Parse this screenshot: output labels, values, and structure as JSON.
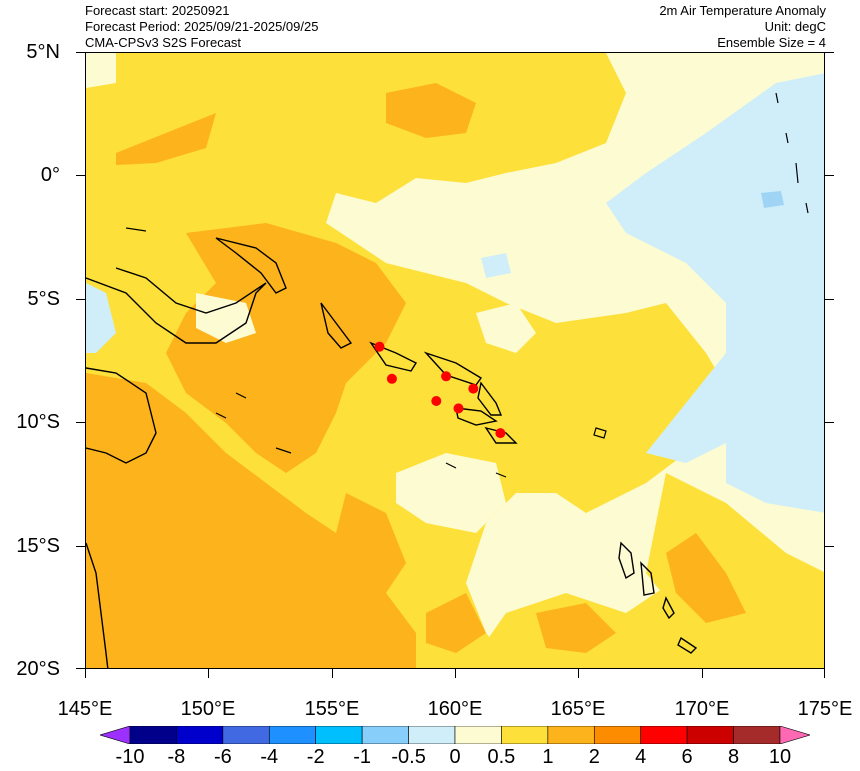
{
  "header": {
    "forecast_start": "Forecast start: 20250921",
    "forecast_period": "Forecast Period: 2025/09/21-2025/09/25",
    "model": "CMA-CPSv3 S2S Forecast",
    "variable": "2m Air Temperature Anomaly",
    "unit": "Unit: degC",
    "ensemble": "Ensemble Size = 4"
  },
  "map": {
    "lon_range": [
      145,
      175
    ],
    "lat_range": [
      -20,
      5
    ],
    "lat_labels": [
      "5°N",
      "0°",
      "5°S",
      "10°S",
      "15°S",
      "20°S"
    ],
    "lon_labels": [
      "145°E",
      "150°E",
      "155°E",
      "160°E",
      "165°E",
      "170°E",
      "175°E"
    ],
    "markers": [
      {
        "lon": 156.9,
        "lat": -6.9
      },
      {
        "lon": 157.4,
        "lat": -8.2
      },
      {
        "lon": 159.6,
        "lat": -8.1
      },
      {
        "lon": 159.2,
        "lat": -9.1
      },
      {
        "lon": 160.1,
        "lat": -9.4
      },
      {
        "lon": 160.7,
        "lat": -8.6
      },
      {
        "lon": 161.8,
        "lat": -10.4
      }
    ],
    "marker_color": "#ff0000"
  },
  "colorbar": {
    "labels": [
      "-10",
      "-8",
      "-6",
      "-4",
      "-2",
      "-1",
      "-0.5",
      "0",
      "0.5",
      "1",
      "2",
      "4",
      "6",
      "8",
      "10"
    ],
    "colors": [
      "#9b30ff",
      "#00008b",
      "#0000cd",
      "#4169e1",
      "#1e90ff",
      "#00bfff",
      "#87cefa",
      "#cfeefa",
      "#fdfbd2",
      "#fde03a",
      "#fdb31b",
      "#fd8c00",
      "#ff0000",
      "#cd0000",
      "#a52a2a",
      "#ff69b4"
    ],
    "fill_legend": {
      "light_blue": "#cfeefa",
      "pale_yellow": "#fdfbd2",
      "yellow": "#fde03a",
      "orange": "#fdb31b"
    }
  }
}
